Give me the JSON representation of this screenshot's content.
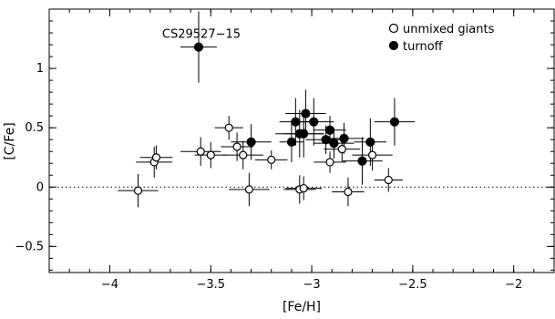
{
  "chart_data": {
    "type": "scatter",
    "xlabel": "[Fe/H]",
    "ylabel": "[C/Fe]",
    "xlim": [
      -4.3,
      -1.8
    ],
    "ylim": [
      -0.72,
      1.5
    ],
    "xticks": [
      -4,
      -3.5,
      -3,
      -2.5,
      -2
    ],
    "xtick_labels": [
      "−4",
      "−3.5",
      "−3",
      "−2.5",
      "−2"
    ],
    "yticks": [
      -0.5,
      0,
      0.5,
      1
    ],
    "ytick_labels": [
      "−0.5",
      "0",
      "0.5",
      "1"
    ],
    "reference_line": {
      "y": 0,
      "style": "dotted"
    },
    "legend_position": "top-right",
    "annotations": [
      {
        "text": "CS29527−15",
        "x": -3.56,
        "y": 1.18
      }
    ],
    "series": [
      {
        "name": "unmixed giants",
        "marker": "open-circle",
        "points": [
          {
            "x": -3.86,
            "y": -0.03,
            "xerr": 0.1,
            "yerr": 0.14
          },
          {
            "x": -3.78,
            "y": 0.21,
            "xerr": 0.09,
            "yerr": 0.13
          },
          {
            "x": -3.77,
            "y": 0.25,
            "xerr": 0.08,
            "yerr": 0.1
          },
          {
            "x": -3.55,
            "y": 0.3,
            "xerr": 0.1,
            "yerr": 0.12
          },
          {
            "x": -3.5,
            "y": 0.27,
            "xerr": 0.08,
            "yerr": 0.11
          },
          {
            "x": -3.41,
            "y": 0.5,
            "xerr": 0.07,
            "yerr": 0.1
          },
          {
            "x": -3.37,
            "y": 0.34,
            "xerr": 0.08,
            "yerr": 0.12
          },
          {
            "x": -3.34,
            "y": 0.27,
            "xerr": 0.1,
            "yerr": 0.12
          },
          {
            "x": -3.31,
            "y": -0.02,
            "xerr": 0.1,
            "yerr": 0.14
          },
          {
            "x": -3.2,
            "y": 0.23,
            "xerr": 0.08,
            "yerr": 0.08
          },
          {
            "x": -3.06,
            "y": -0.02,
            "xerr": 0.08,
            "yerr": 0.12
          },
          {
            "x": -3.04,
            "y": -0.01,
            "xerr": 0.09,
            "yerr": 0.1
          },
          {
            "x": -2.91,
            "y": 0.21,
            "xerr": 0.08,
            "yerr": 0.09
          },
          {
            "x": -2.85,
            "y": 0.32,
            "xerr": 0.09,
            "yerr": 0.1
          },
          {
            "x": -2.82,
            "y": -0.04,
            "xerr": 0.08,
            "yerr": 0.12
          },
          {
            "x": -2.7,
            "y": 0.27,
            "xerr": 0.1,
            "yerr": 0.13
          },
          {
            "x": -2.62,
            "y": 0.06,
            "xerr": 0.07,
            "yerr": 0.1
          }
        ]
      },
      {
        "name": "turnoff",
        "marker": "filled-circle",
        "points": [
          {
            "x": -3.56,
            "y": 1.18,
            "xerr": 0.09,
            "yerr": 0.3
          },
          {
            "x": -3.3,
            "y": 0.38,
            "xerr": 0.1,
            "yerr": 0.15
          },
          {
            "x": -3.1,
            "y": 0.38,
            "xerr": 0.06,
            "yerr": 0.17
          },
          {
            "x": -3.08,
            "y": 0.55,
            "xerr": 0.08,
            "yerr": 0.2
          },
          {
            "x": -3.06,
            "y": 0.45,
            "xerr": 0.12,
            "yerr": 0.2
          },
          {
            "x": -3.04,
            "y": 0.45,
            "xerr": 0.1,
            "yerr": 0.2
          },
          {
            "x": -3.03,
            "y": 0.62,
            "xerr": 0.1,
            "yerr": 0.2
          },
          {
            "x": -2.99,
            "y": 0.55,
            "xerr": 0.1,
            "yerr": 0.2
          },
          {
            "x": -2.93,
            "y": 0.4,
            "xerr": 0.1,
            "yerr": 0.12
          },
          {
            "x": -2.91,
            "y": 0.48,
            "xerr": 0.08,
            "yerr": 0.12
          },
          {
            "x": -2.89,
            "y": 0.37,
            "xerr": 0.1,
            "yerr": 0.13
          },
          {
            "x": -2.84,
            "y": 0.41,
            "xerr": 0.1,
            "yerr": 0.13
          },
          {
            "x": -2.75,
            "y": 0.22,
            "xerr": 0.1,
            "yerr": 0.2
          },
          {
            "x": -2.71,
            "y": 0.38,
            "xerr": 0.08,
            "yerr": 0.2
          },
          {
            "x": -2.59,
            "y": 0.55,
            "xerr": 0.1,
            "yerr": 0.2
          }
        ]
      }
    ]
  }
}
